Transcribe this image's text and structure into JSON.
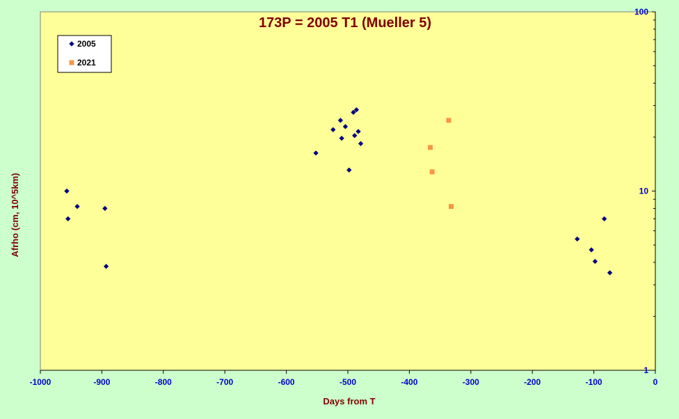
{
  "colors": {
    "background": "#ccffcc",
    "plot_area": "#ffff99",
    "axis": "#000000",
    "tick_label": "#0000cc",
    "title": "#800000",
    "series_2005": "#000080",
    "series_2021": "#f79646"
  },
  "chart_data": {
    "type": "scatter",
    "title": "173P = 2005 T1 (Mueller  5)",
    "xlabel": "Days from T",
    "ylabel": "Afrho (cm, 10^5km)",
    "xlim": [
      -1000,
      0
    ],
    "ylim": [
      1,
      100
    ],
    "y_scale": "log",
    "x_ticks": [
      -1000,
      -900,
      -800,
      -700,
      -600,
      -500,
      -400,
      -300,
      -200,
      -100,
      0
    ],
    "y_ticks": [
      1,
      10,
      100
    ],
    "y_axis_side": "right",
    "grid": false,
    "legend_position": "top-left",
    "series": [
      {
        "name": "2005",
        "marker": "diamond",
        "color": "#000080",
        "points": [
          [
            -957,
            10.0
          ],
          [
            -955,
            7.0
          ],
          [
            -940,
            8.2
          ],
          [
            -895,
            8.0
          ],
          [
            -893,
            3.8
          ],
          [
            -552,
            16.3
          ],
          [
            -524,
            22.0
          ],
          [
            -512,
            24.8
          ],
          [
            -510,
            19.7
          ],
          [
            -504,
            22.9
          ],
          [
            -498,
            13.1
          ],
          [
            -491,
            27.5
          ],
          [
            -489,
            20.4
          ],
          [
            -486,
            28.4
          ],
          [
            -483,
            21.5
          ],
          [
            -479,
            18.4
          ],
          [
            -127,
            5.4
          ],
          [
            -104,
            4.7
          ],
          [
            -98,
            4.05
          ],
          [
            -83,
            7.0
          ],
          [
            -74,
            3.5
          ]
        ]
      },
      {
        "name": "2021",
        "marker": "square",
        "color": "#f79646",
        "points": [
          [
            -366,
            17.5
          ],
          [
            -363,
            12.8
          ],
          [
            -336,
            24.8
          ],
          [
            -332,
            8.2
          ]
        ]
      }
    ]
  }
}
